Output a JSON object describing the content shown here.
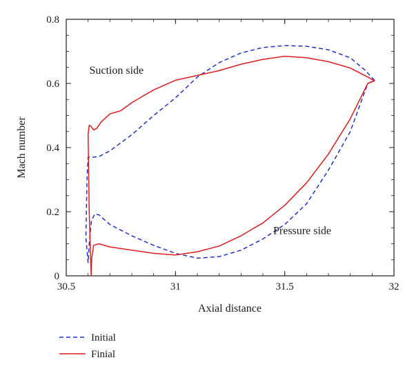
{
  "chart_data": {
    "type": "line",
    "xlabel": "Axial distance",
    "ylabel": "Mach number",
    "xlim": [
      30.5,
      32
    ],
    "ylim": [
      0,
      0.8
    ],
    "x_ticks": [
      "30.5",
      "31",
      "31.5",
      "32"
    ],
    "y_ticks": [
      "0",
      "0.2",
      "0.4",
      "0.6",
      "0.8"
    ],
    "x_tick_values": [
      30.5,
      31,
      31.5,
      32
    ],
    "y_tick_values": [
      0,
      0.2,
      0.4,
      0.6,
      0.8
    ],
    "grid": false,
    "legend_position": "bottom-left, below plot",
    "annotations": [
      {
        "text": "Suction side",
        "x": 30.73,
        "y": 0.63
      },
      {
        "text": "Pressure side",
        "x": 31.58,
        "y": 0.13
      }
    ],
    "series": [
      {
        "name": "Initial",
        "style": "dashed",
        "color": "#1f2fd6",
        "points": [
          [
            30.6,
            0.04
          ],
          [
            30.59,
            0.12
          ],
          [
            30.595,
            0.3
          ],
          [
            30.6,
            0.37
          ],
          [
            30.62,
            0.37
          ],
          [
            30.65,
            0.372
          ],
          [
            30.7,
            0.39
          ],
          [
            30.8,
            0.44
          ],
          [
            30.9,
            0.5
          ],
          [
            31.0,
            0.555
          ],
          [
            31.1,
            0.62
          ],
          [
            31.2,
            0.665
          ],
          [
            31.3,
            0.695
          ],
          [
            31.4,
            0.712
          ],
          [
            31.5,
            0.718
          ],
          [
            31.6,
            0.716
          ],
          [
            31.7,
            0.705
          ],
          [
            31.8,
            0.68
          ],
          [
            31.87,
            0.64
          ],
          [
            31.91,
            0.61
          ],
          [
            31.88,
            0.6
          ],
          [
            31.8,
            0.45
          ],
          [
            31.7,
            0.33
          ],
          [
            31.6,
            0.225
          ],
          [
            31.5,
            0.16
          ],
          [
            31.4,
            0.115
          ],
          [
            31.3,
            0.08
          ],
          [
            31.2,
            0.06
          ],
          [
            31.1,
            0.055
          ],
          [
            31.0,
            0.07
          ],
          [
            30.9,
            0.095
          ],
          [
            30.8,
            0.125
          ],
          [
            30.7,
            0.16
          ],
          [
            30.65,
            0.19
          ],
          [
            30.63,
            0.193
          ],
          [
            30.615,
            0.17
          ],
          [
            30.605,
            0.1
          ],
          [
            30.6,
            0.04
          ]
        ]
      },
      {
        "name": "Finial",
        "style": "solid",
        "color": "#e01b1b",
        "points": [
          [
            30.614,
            0.0
          ],
          [
            30.605,
            0.2
          ],
          [
            30.6,
            0.44
          ],
          [
            30.605,
            0.47
          ],
          [
            30.615,
            0.465
          ],
          [
            30.625,
            0.455
          ],
          [
            30.64,
            0.46
          ],
          [
            30.66,
            0.48
          ],
          [
            30.7,
            0.505
          ],
          [
            30.75,
            0.515
          ],
          [
            30.8,
            0.54
          ],
          [
            30.9,
            0.58
          ],
          [
            31.0,
            0.61
          ],
          [
            31.1,
            0.625
          ],
          [
            31.2,
            0.64
          ],
          [
            31.3,
            0.66
          ],
          [
            31.4,
            0.675
          ],
          [
            31.5,
            0.685
          ],
          [
            31.6,
            0.68
          ],
          [
            31.7,
            0.668
          ],
          [
            31.8,
            0.648
          ],
          [
            31.88,
            0.62
          ],
          [
            31.91,
            0.608
          ],
          [
            31.88,
            0.6
          ],
          [
            31.8,
            0.49
          ],
          [
            31.7,
            0.38
          ],
          [
            31.6,
            0.29
          ],
          [
            31.5,
            0.22
          ],
          [
            31.4,
            0.165
          ],
          [
            31.3,
            0.125
          ],
          [
            31.2,
            0.093
          ],
          [
            31.1,
            0.075
          ],
          [
            31.0,
            0.065
          ],
          [
            30.9,
            0.07
          ],
          [
            30.8,
            0.08
          ],
          [
            30.7,
            0.09
          ],
          [
            30.65,
            0.1
          ],
          [
            30.625,
            0.095
          ],
          [
            30.616,
            0.05
          ],
          [
            30.614,
            0.0
          ]
        ]
      }
    ]
  }
}
